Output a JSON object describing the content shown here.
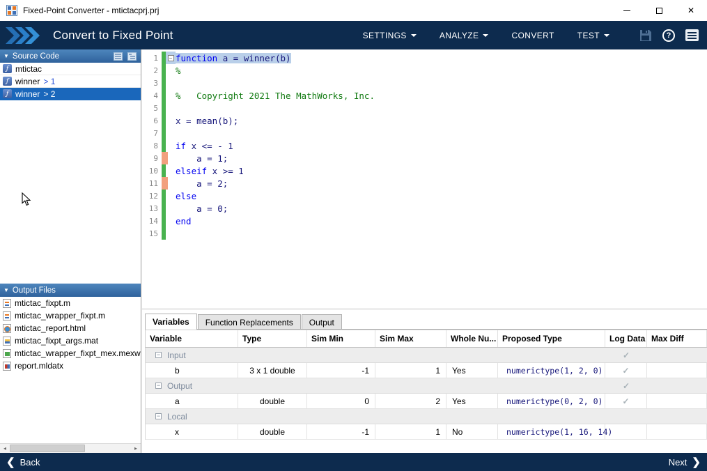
{
  "window": {
    "title": "Fixed-Point Converter - mtictacprj.prj"
  },
  "toolbar": {
    "app_title": "Convert to Fixed Point",
    "menus": [
      {
        "label": "SETTINGS",
        "has_dropdown": true
      },
      {
        "label": "ANALYZE",
        "has_dropdown": true
      },
      {
        "label": "CONVERT",
        "has_dropdown": false
      },
      {
        "label": "TEST",
        "has_dropdown": true
      }
    ]
  },
  "sidebar": {
    "source_code": {
      "header": "Source Code",
      "items": [
        {
          "name": "mtictac",
          "suffix": "",
          "selected": false,
          "icon": "function-icon"
        },
        {
          "name": "winner",
          "suffix": "> 1",
          "selected": false,
          "icon": "function-icon"
        },
        {
          "name": "winner",
          "suffix": "> 2",
          "selected": true,
          "icon": "function-icon"
        }
      ]
    },
    "output_files": {
      "header": "Output Files",
      "items": [
        {
          "label": "mtictac_fixpt.m",
          "icon": "matlab-file-icon"
        },
        {
          "label": "mtictac_wrapper_fixpt.m",
          "icon": "matlab-file-icon"
        },
        {
          "label": "mtictac_report.html",
          "icon": "html-file-icon"
        },
        {
          "label": "mtictac_fixpt_args.mat",
          "icon": "mat-file-icon"
        },
        {
          "label": "mtictac_wrapper_fixpt_mex.mexw",
          "icon": "mex-file-icon"
        },
        {
          "label": "report.mldatx",
          "icon": "report-file-icon"
        }
      ]
    }
  },
  "editor": {
    "lines": [
      {
        "num": "1",
        "gutter": "green",
        "fold": true,
        "highlighted": true,
        "segments": [
          {
            "type": "keyword",
            "text": "function"
          },
          {
            "type": "plain",
            "text": " a = winner(b)"
          }
        ]
      },
      {
        "num": "2",
        "gutter": "green",
        "segments": [
          {
            "type": "comment",
            "text": "%"
          }
        ]
      },
      {
        "num": "3",
        "gutter": "green",
        "segments": []
      },
      {
        "num": "4",
        "gutter": "green",
        "segments": [
          {
            "type": "comment",
            "text": "%   Copyright 2021 The MathWorks, Inc."
          }
        ]
      },
      {
        "num": "5",
        "gutter": "green",
        "segments": []
      },
      {
        "num": "6",
        "gutter": "green",
        "segments": [
          {
            "type": "plain",
            "text": "x = mean(b);"
          }
        ]
      },
      {
        "num": "7",
        "gutter": "green",
        "segments": []
      },
      {
        "num": "8",
        "gutter": "green",
        "segments": [
          {
            "type": "keyword",
            "text": "if"
          },
          {
            "type": "plain",
            "text": " x <= - 1"
          }
        ]
      },
      {
        "num": "9",
        "gutter": "orange",
        "segments": [
          {
            "type": "plain",
            "text": "    a = 1;"
          }
        ]
      },
      {
        "num": "10",
        "gutter": "green",
        "segments": [
          {
            "type": "keyword",
            "text": "elseif"
          },
          {
            "type": "plain",
            "text": " x >= 1"
          }
        ]
      },
      {
        "num": "11",
        "gutter": "orange",
        "segments": [
          {
            "type": "plain",
            "text": "    a = 2;"
          }
        ]
      },
      {
        "num": "12",
        "gutter": "green",
        "segments": [
          {
            "type": "keyword",
            "text": "else"
          }
        ]
      },
      {
        "num": "13",
        "gutter": "green",
        "segments": [
          {
            "type": "plain",
            "text": "    a = 0;"
          }
        ]
      },
      {
        "num": "14",
        "gutter": "green",
        "segments": [
          {
            "type": "keyword",
            "text": "end"
          }
        ]
      },
      {
        "num": "15",
        "gutter": "green",
        "segments": []
      }
    ]
  },
  "bottom_panel": {
    "tabs": [
      {
        "label": "Variables",
        "active": true
      },
      {
        "label": "Function Replacements",
        "active": false
      },
      {
        "label": "Output",
        "active": false
      }
    ],
    "table": {
      "columns": [
        "Variable",
        "Type",
        "Sim Min",
        "Sim Max",
        "Whole Nu...",
        "Proposed Type",
        "Log Data",
        "Max Diff"
      ],
      "rows": [
        {
          "kind": "group",
          "label": "Input",
          "log_check": true
        },
        {
          "kind": "data",
          "variable": "b",
          "type": "3 x 1 double",
          "sim_min": "-1",
          "sim_max": "1",
          "whole_number": "Yes",
          "proposed_type": "numerictype(1, 2, 0)",
          "log_check": true,
          "max_diff": ""
        },
        {
          "kind": "group",
          "label": "Output",
          "log_check": true
        },
        {
          "kind": "data",
          "variable": "a",
          "type": "double",
          "sim_min": "0",
          "sim_max": "2",
          "whole_number": "Yes",
          "proposed_type": "numerictype(0, 2, 0)",
          "log_check": true,
          "max_diff": ""
        },
        {
          "kind": "group",
          "label": "Local",
          "log_check": false
        },
        {
          "kind": "data",
          "variable": "x",
          "type": "double",
          "sim_min": "-1",
          "sim_max": "1",
          "whole_number": "No",
          "proposed_type": "numerictype(1, 16, 14)",
          "log_check": false,
          "max_diff": ""
        }
      ]
    }
  },
  "footer": {
    "back_label": "Back",
    "next_label": "Next"
  },
  "icons": {
    "close": "✕",
    "help": "?",
    "panel-triangle": "▼",
    "back-chevron": "❮",
    "next-chevron": "❯",
    "scroll-left": "◂",
    "scroll-right": "▸",
    "fold-marker": "−",
    "collapse-box": "−",
    "function-glyph": "ƒ",
    "check": "✓"
  },
  "colors": {
    "toolbar_bg": "#0d2b4e",
    "panel_header_blue": "#3b74ae",
    "selection_blue": "#1a67bb",
    "coverage_green": "#49b24f",
    "coverage_orange": "#f2a07e",
    "keyword_blue": "#0000f0",
    "comment_green": "#117a11",
    "code_text": "#16167a"
  }
}
